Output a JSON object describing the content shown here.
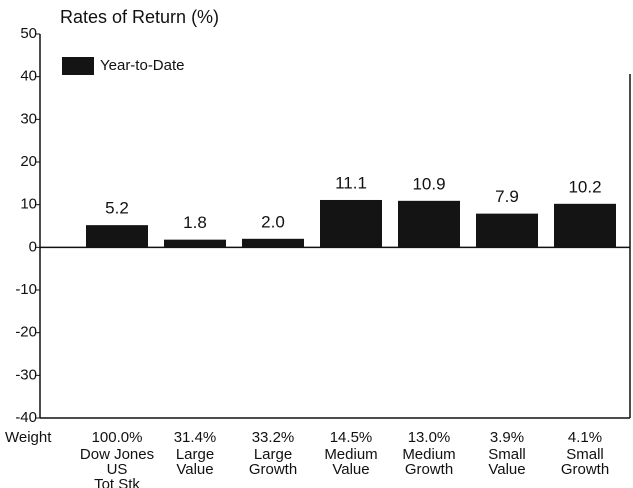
{
  "chart_data": {
    "type": "bar",
    "title": "Rates of Return (%)",
    "legend": "upper left",
    "series": [
      {
        "name": "Year-to-Date",
        "color": "#141414",
        "values": [
          5.2,
          1.8,
          2.0,
          11.1,
          10.9,
          7.9,
          10.2
        ],
        "value_labels": [
          "5.2",
          "1.8",
          "2.0",
          "11.1",
          "10.9",
          "7.9",
          "10.2"
        ]
      }
    ],
    "categories": [
      "Dow Jones\nUS\nTot Stk",
      "Large\nValue",
      "Large\nGrowth",
      "Medium\nValue",
      "Medium\nGrowth",
      "Small\nValue",
      "Small\nGrowth"
    ],
    "weight_title": "Weight",
    "weights": [
      "100.0%",
      "31.4%",
      "33.2%",
      "14.5%",
      "13.0%",
      "3.9%",
      "4.1%"
    ],
    "ylim": [
      -40,
      50
    ],
    "yticks": [
      -40,
      -30,
      -20,
      -10,
      0,
      10,
      20,
      30,
      40,
      50
    ]
  }
}
